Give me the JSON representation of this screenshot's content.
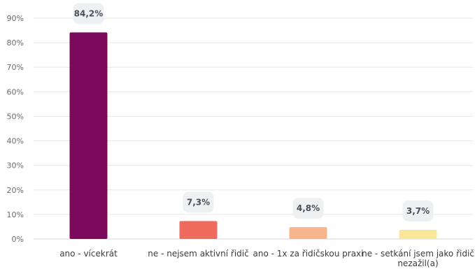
{
  "chart_data": {
    "type": "bar",
    "title": "",
    "xlabel": "",
    "ylabel": "",
    "ylim": [
      0,
      90
    ],
    "yticks": [
      "0%",
      "10%",
      "20%",
      "30%",
      "40%",
      "50%",
      "60%",
      "70%",
      "80%",
      "90%"
    ],
    "grid": true,
    "categories": [
      [
        "ano - vícekrát"
      ],
      [
        "ne - nejsem aktivní řidič"
      ],
      [
        "ano - 1x za řidičskou praxi"
      ],
      [
        "ne - setkání jsem jako řidič",
        "nezažil(a)"
      ]
    ],
    "values": [
      84.2,
      7.3,
      4.8,
      3.7
    ],
    "data_labels": [
      "84,2%",
      "7,3%",
      "4,8%",
      "3,7%"
    ],
    "colors": [
      "#7b0a5c",
      "#ef6b5e",
      "#f6b58c",
      "#f9e79a"
    ]
  }
}
